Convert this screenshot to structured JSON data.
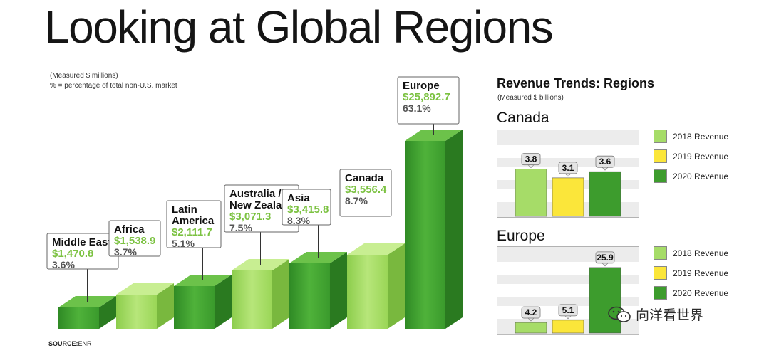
{
  "title": "Looking at Global Regions",
  "notes": {
    "line1": "(Measured $ millions)",
    "line2": "% = percentage of total non-U.S. market"
  },
  "source": {
    "label": "SOURCE:",
    "value": "ENR"
  },
  "colors": {
    "green_dark": "#3f9a2c",
    "green_light": "#9bd85a",
    "yellow": "#f7e235",
    "value_green": "#7cc242"
  },
  "chart_data": [
    {
      "type": "bar",
      "categories": [
        "Middle East",
        "Africa",
        "Latin America",
        "Australia / New Zealand",
        "Asia",
        "Canada",
        "Europe"
      ],
      "label_lines": [
        [
          "Middle East"
        ],
        [
          "Africa"
        ],
        [
          "Latin",
          "America"
        ],
        [
          "Australia /",
          "New Zealand"
        ],
        [
          "Asia"
        ],
        [
          "Canada"
        ],
        [
          "Europe"
        ]
      ],
      "values": [
        1470.8,
        1538.9,
        2111.7,
        3071.3,
        3415.8,
        3556.4,
        25892.7
      ],
      "value_labels": [
        "$1,470.8",
        "$1,538.9",
        "$2,111.7",
        "$3,071.3",
        "$3,415.8",
        "$3,556.4",
        "$25,892.7"
      ],
      "percent_labels": [
        "3.6%",
        "3.7%",
        "5.1%",
        "7.5%",
        "8.3%",
        "8.7%",
        "63.1%"
      ],
      "bar_colors": [
        "dark",
        "light",
        "dark",
        "light",
        "dark",
        "light",
        "dark"
      ]
    },
    {
      "type": "bar",
      "title": "Canada",
      "categories": [
        "2018",
        "2019",
        "2020"
      ],
      "values": [
        3.8,
        3.1,
        3.6
      ],
      "value_labels": [
        "3.8",
        "3.1",
        "3.6"
      ],
      "legend": [
        "2018 Revenue",
        "2019 Revenue",
        "2020 Revenue"
      ],
      "legend_position": "right",
      "grid": true
    },
    {
      "type": "bar",
      "title": "Europe",
      "categories": [
        "2018",
        "2019",
        "2020"
      ],
      "values": [
        4.2,
        5.1,
        25.9
      ],
      "value_labels": [
        "4.2",
        "5.1",
        "25.9"
      ],
      "legend": [
        "2018 Revenue",
        "2019 Revenue",
        "2020 Revenue"
      ],
      "legend_position": "right",
      "grid": true
    }
  ],
  "trends": {
    "title": "Revenue Trends: Regions",
    "subtitle": "(Measured $ billions)"
  },
  "watermark": "向洋看世界",
  "icons": {
    "watermark": "wechat-icon"
  }
}
